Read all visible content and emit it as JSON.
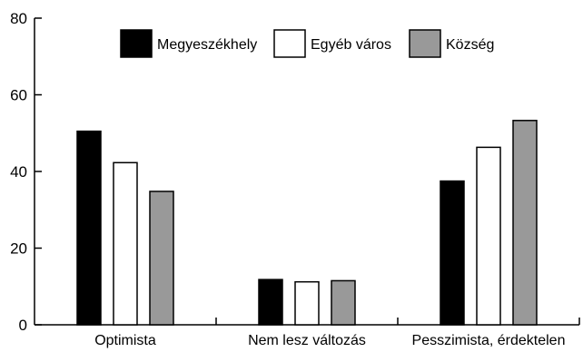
{
  "chart_data": {
    "type": "bar",
    "categories": [
      "Optimista",
      "Nem lesz változás",
      "Pesszimista, érdektelen"
    ],
    "series": [
      {
        "name": "Megyeszékhely",
        "values": [
          50.5,
          11.8,
          37.5
        ],
        "color": "#000000"
      },
      {
        "name": "Egyéb város",
        "values": [
          42.3,
          11.2,
          46.3
        ],
        "color": "#ffffff"
      },
      {
        "name": "Község",
        "values": [
          34.8,
          11.5,
          53.3
        ],
        "color": "#999999"
      }
    ],
    "ylim": [
      0,
      80
    ],
    "yticks": [
      "0",
      "20",
      "40",
      "60",
      "80"
    ],
    "grid": false,
    "legend_position": "top"
  }
}
